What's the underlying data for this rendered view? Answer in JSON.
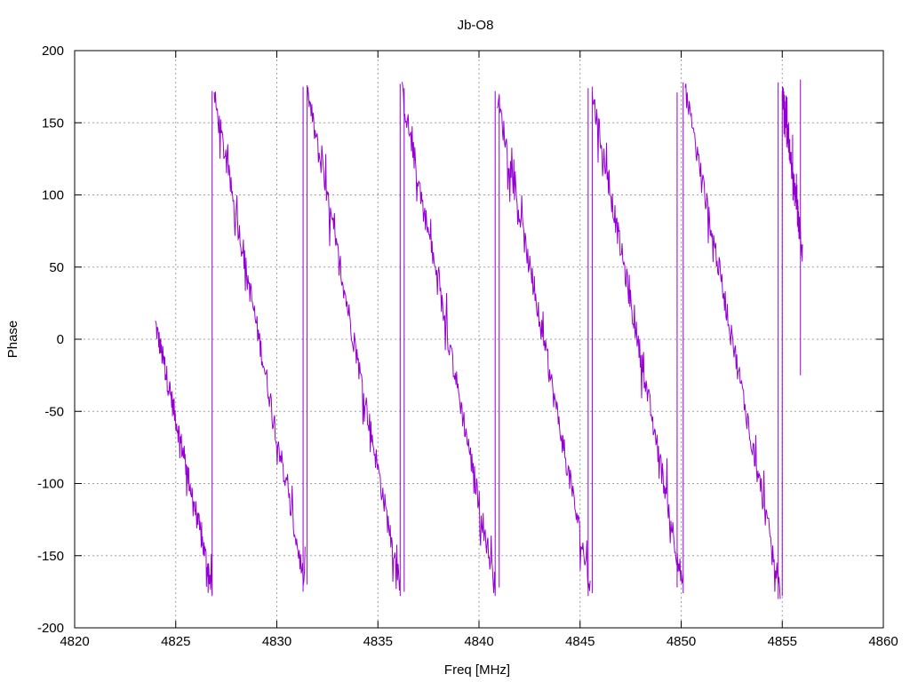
{
  "chart_data": {
    "type": "line",
    "title": "Jb-O8",
    "xlabel": "Freq [MHz]",
    "ylabel": "Phase",
    "xlim": [
      4820,
      4860
    ],
    "ylim": [
      -200,
      200
    ],
    "xticks": [
      4820,
      4825,
      4830,
      4835,
      4840,
      4845,
      4850,
      4855,
      4860
    ],
    "yticks": [
      -200,
      -150,
      -100,
      -50,
      0,
      50,
      100,
      150,
      200
    ],
    "grid": true,
    "series_color": "#9400d3",
    "wraps": [
      {
        "x0": 4824.0,
        "y0": 10,
        "x1": 4826.8,
        "y1": -172
      },
      {
        "x0": 4826.9,
        "y0": 168,
        "x1": 4831.4,
        "y1": -172
      },
      {
        "x0": 4831.5,
        "y0": 172,
        "x1": 4836.1,
        "y1": -172
      },
      {
        "x0": 4836.2,
        "y0": 170,
        "x1": 4840.8,
        "y1": -172
      },
      {
        "x0": 4840.9,
        "y0": 168,
        "x1": 4845.5,
        "y1": -172
      },
      {
        "x0": 4845.6,
        "y0": 170,
        "x1": 4850.1,
        "y1": -172
      },
      {
        "x0": 4850.2,
        "y0": 172,
        "x1": 4854.9,
        "y1": -175
      },
      {
        "x0": 4855.0,
        "y0": 172,
        "x1": 4856.0,
        "y1": 60
      }
    ],
    "spikes": [
      {
        "x": 4826.8,
        "y0": -178,
        "y1": 172
      },
      {
        "x": 4831.3,
        "y0": -175,
        "y1": 175
      },
      {
        "x": 4831.5,
        "y0": -170,
        "y1": 176
      },
      {
        "x": 4836.1,
        "y0": -178,
        "y1": 177
      },
      {
        "x": 4836.3,
        "y0": -175,
        "y1": 174
      },
      {
        "x": 4840.8,
        "y0": -178,
        "y1": 172
      },
      {
        "x": 4841.0,
        "y0": -172,
        "y1": 170
      },
      {
        "x": 4845.4,
        "y0": -178,
        "y1": 174
      },
      {
        "x": 4845.6,
        "y0": -176,
        "y1": 175
      },
      {
        "x": 4849.8,
        "y0": -172,
        "y1": 171
      },
      {
        "x": 4850.1,
        "y0": -176,
        "y1": 178
      },
      {
        "x": 4854.8,
        "y0": -180,
        "y1": 178
      },
      {
        "x": 4855.0,
        "y0": -178,
        "y1": 172
      },
      {
        "x": 4855.9,
        "y0": -25,
        "y1": 180
      }
    ]
  }
}
